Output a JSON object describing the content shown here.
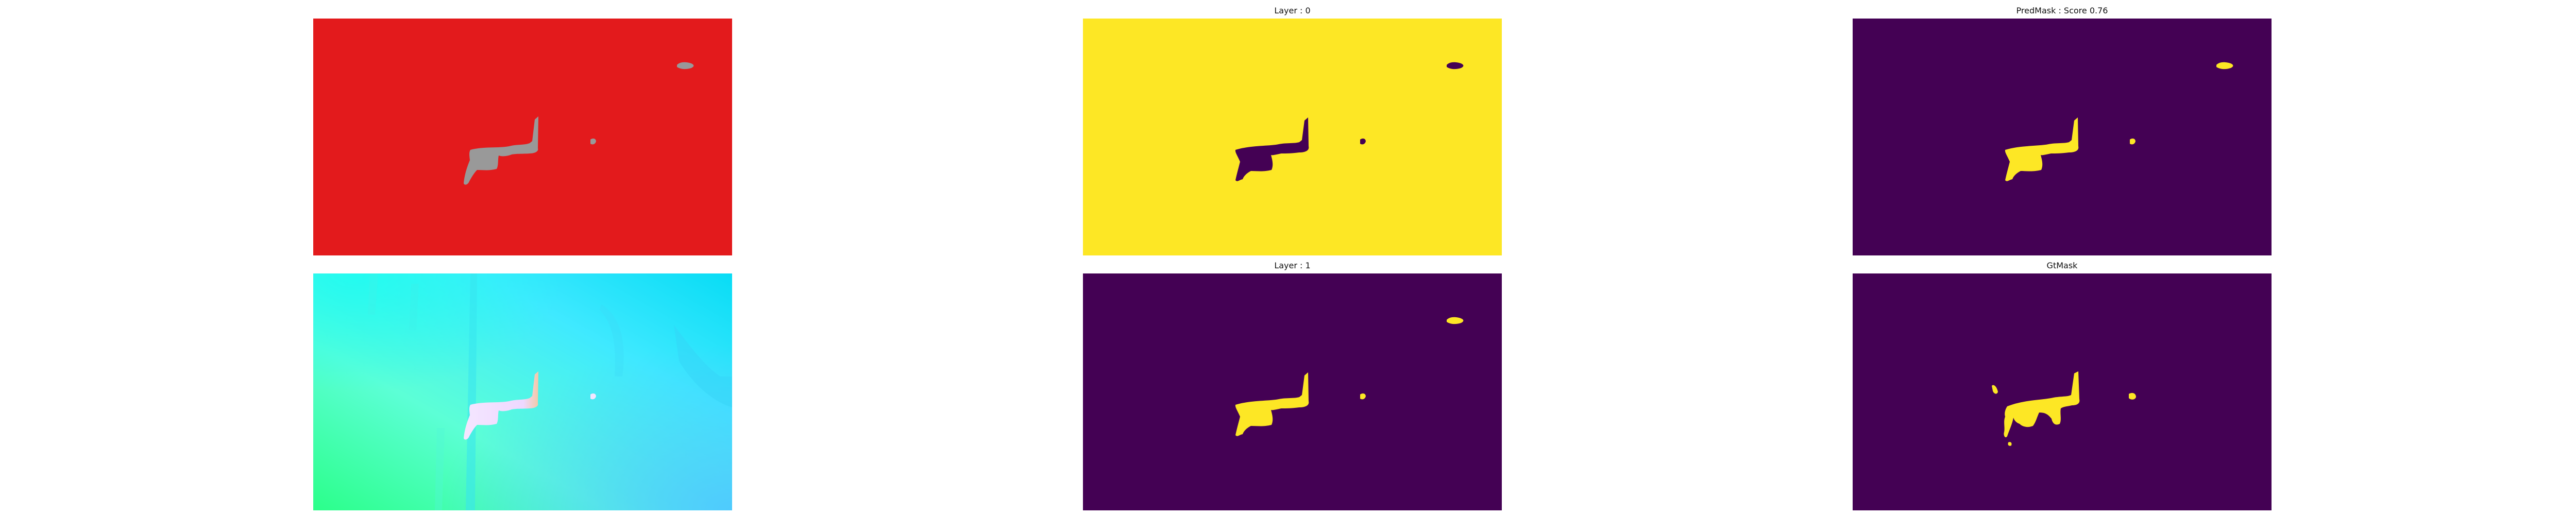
{
  "panels": {
    "segmentation": {
      "title": ""
    },
    "layer0": {
      "title": "Layer : 0"
    },
    "predmask": {
      "title": "PredMask : Score 0.76"
    },
    "flow": {
      "title": ""
    },
    "layer1": {
      "title": "Layer : 1"
    },
    "gtmask": {
      "title": "GtMask"
    }
  },
  "colors": {
    "seg_background": "#e31a1c",
    "seg_object": "#999999",
    "viridis_low": "#440154",
    "viridis_high": "#fde725",
    "flow_green": "#2bff8a",
    "flow_cyan": "#14e6ff",
    "flow_blue": "#4fd2ff",
    "flow_object": "#f1ddff"
  }
}
